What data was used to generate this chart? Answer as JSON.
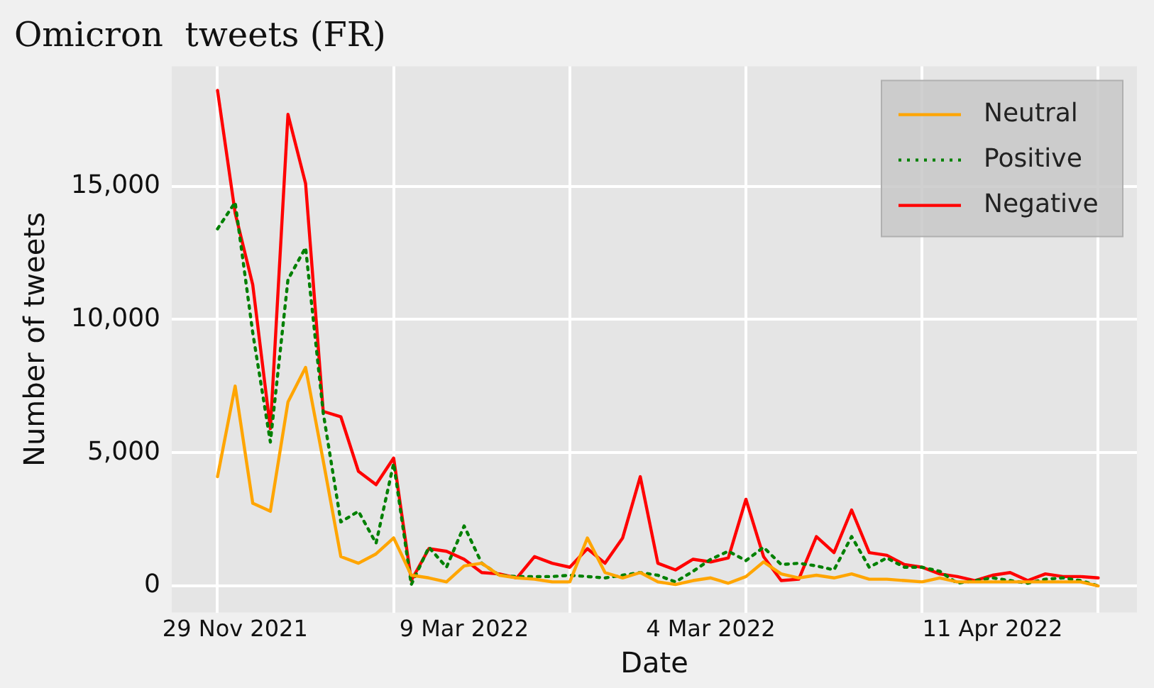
{
  "chart_data": {
    "type": "line",
    "title": "Omicron  tweets (FR)",
    "xlabel": "Date",
    "ylabel": "Number of tweets",
    "categories": [
      null,
      "29 Nov 2021",
      null,
      null,
      null,
      null,
      null,
      null,
      null,
      null,
      null,
      null,
      null,
      null,
      "9 Mar 2022",
      null,
      null,
      null,
      null,
      null,
      null,
      null,
      null,
      null,
      null,
      null,
      null,
      null,
      "4 Mar 2022",
      null,
      null,
      null,
      null,
      null,
      null,
      null,
      null,
      null,
      null,
      null,
      null,
      null,
      null,
      null,
      "11 Apr 2022",
      null,
      null,
      null,
      null,
      null,
      null
    ],
    "ylim": [
      -1000,
      19500
    ],
    "yticks": [
      {
        "value": 0,
        "label": "0"
      },
      {
        "value": 5000,
        "label": "5,000"
      },
      {
        "value": 10000,
        "label": "10,000"
      },
      {
        "value": 15000,
        "label": "15,000"
      }
    ],
    "grid": true,
    "legend": "top right",
    "marker": "none",
    "series": [
      {
        "name": "Neutral",
        "color": "#ffa500",
        "line_style": "solid",
        "values": [
          4100,
          7500,
          3100,
          2800,
          6900,
          8200,
          4700,
          1100,
          850,
          1200,
          1800,
          400,
          300,
          150,
          750,
          850,
          400,
          300,
          250,
          150,
          150,
          1800,
          500,
          300,
          500,
          150,
          50,
          200,
          300,
          100,
          350,
          900,
          450,
          300,
          400,
          300,
          450,
          250,
          250,
          200,
          150,
          300,
          150,
          150,
          150,
          150,
          150,
          150,
          150,
          150,
          0
        ]
      },
      {
        "name": "Positive",
        "color": "#008000",
        "line_style": "dotted",
        "values": [
          13400,
          14400,
          9500,
          5400,
          11500,
          12700,
          6500,
          2400,
          2800,
          1600,
          4600,
          50,
          1450,
          700,
          2250,
          850,
          400,
          350,
          350,
          350,
          400,
          350,
          300,
          400,
          500,
          400,
          150,
          550,
          1000,
          1300,
          950,
          1450,
          800,
          850,
          750,
          600,
          1850,
          700,
          1050,
          700,
          700,
          550,
          100,
          200,
          300,
          200,
          100,
          250,
          300,
          200,
          0
        ]
      },
      {
        "name": "Negative",
        "color": "#ff0000",
        "line_style": "solid",
        "values": [
          18600,
          14000,
          11300,
          5900,
          17700,
          15100,
          6550,
          6350,
          4300,
          3800,
          4800,
          200,
          1400,
          1300,
          1000,
          500,
          450,
          300,
          1100,
          850,
          700,
          1400,
          850,
          1800,
          4100,
          850,
          600,
          1000,
          900,
          1050,
          3250,
          1100,
          200,
          250,
          1850,
          1250,
          2850,
          1250,
          1150,
          800,
          700,
          450,
          350,
          200,
          400,
          500,
          200,
          450,
          350,
          350,
          300
        ]
      }
    ]
  }
}
